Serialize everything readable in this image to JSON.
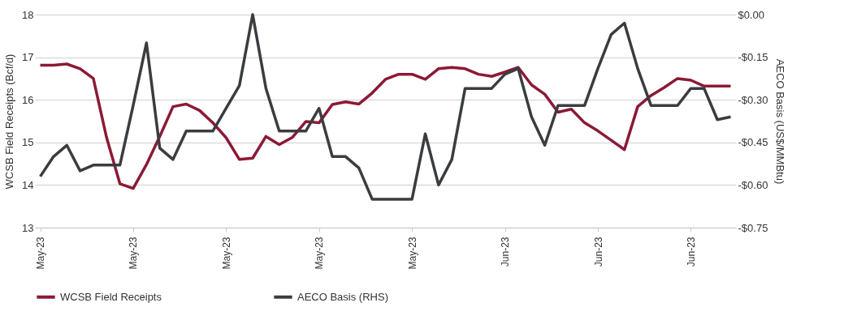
{
  "chart_data": {
    "type": "line",
    "ylabel": "WCSB Field Receipts (Bcf/d)",
    "y2label": "AECO Basis (US$/MMBtu)",
    "categories": [
      "May-23",
      null,
      null,
      null,
      null,
      null,
      null,
      "May-23",
      null,
      null,
      null,
      null,
      null,
      null,
      "May-23",
      null,
      null,
      null,
      null,
      null,
      null,
      "May-23",
      null,
      null,
      null,
      null,
      null,
      null,
      "May-23",
      null,
      null,
      null,
      null,
      null,
      null,
      "Jun-23",
      null,
      null,
      null,
      null,
      null,
      null,
      "Jun-23",
      null,
      null,
      null,
      null,
      null,
      null,
      "Jun-23",
      null,
      null,
      null
    ],
    "series": [
      {
        "name": "WCSB Field Receipts",
        "color": "#8b1a35",
        "values": [
          16.81,
          16.81,
          16.84,
          16.73,
          16.5,
          15.11,
          14.03,
          13.92,
          14.48,
          15.14,
          15.84,
          15.9,
          15.75,
          15.46,
          15.11,
          14.6,
          14.63,
          15.14,
          14.95,
          15.12,
          15.49,
          15.46,
          15.89,
          15.95,
          15.9,
          16.16,
          16.48,
          16.6,
          16.6,
          16.48,
          16.73,
          16.76,
          16.73,
          16.6,
          16.55,
          16.65,
          16.76,
          16.35,
          16.13,
          15.71,
          15.78,
          15.46,
          15.27,
          15.05,
          14.83,
          15.84,
          16.1,
          16.29,
          16.5,
          16.46,
          16.32,
          16.32,
          16.32
        ]
      },
      {
        "name": "AECO Basis (RHS)",
        "color": "#3a3d40",
        "axis": "y2",
        "values": [
          -0.57,
          -0.5,
          -0.46,
          -0.55,
          -0.53,
          -0.53,
          -0.53,
          -0.32,
          -0.1,
          -0.47,
          -0.51,
          -0.41,
          -0.41,
          -0.41,
          -0.33,
          -0.25,
          0,
          -0.26,
          -0.41,
          -0.41,
          -0.41,
          -0.33,
          -0.5,
          -0.5,
          -0.54,
          -0.65,
          -0.65,
          -0.65,
          -0.65,
          -0.42,
          -0.6,
          -0.51,
          -0.26,
          -0.26,
          -0.26,
          -0.21,
          -0.19,
          -0.36,
          -0.46,
          -0.32,
          -0.32,
          -0.32,
          -0.19,
          -0.07,
          -0.03,
          -0.19,
          -0.32,
          -0.32,
          -0.32,
          -0.26,
          -0.26,
          -0.37,
          -0.36
        ]
      }
    ],
    "ylim": [
      13,
      18
    ],
    "yticks": [
      13,
      14,
      15,
      16,
      17,
      18
    ],
    "y2lim": [
      -0.75,
      0
    ],
    "y2ticks": [
      {
        "value": -0.75,
        "label": "-$0.75"
      },
      {
        "value": -0.6,
        "label": "-$0.60"
      },
      {
        "value": -0.45,
        "label": "-$0.45"
      },
      {
        "value": -0.3,
        "label": "-$0.30"
      },
      {
        "value": -0.15,
        "label": "-$0.15"
      },
      {
        "value": 0,
        "label": "$0.00"
      }
    ],
    "grid": "y",
    "legend": "bottom",
    "line_style": "solid",
    "marker": "none"
  }
}
